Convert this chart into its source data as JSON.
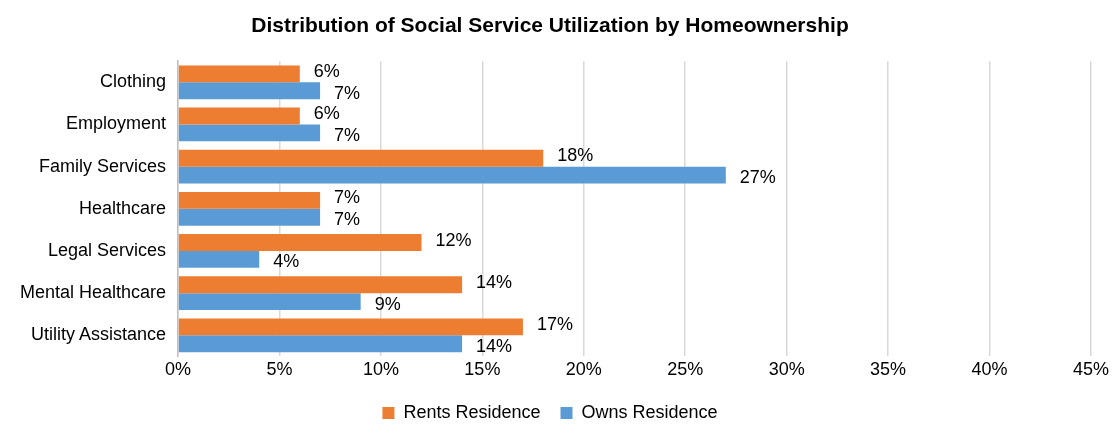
{
  "chart_data": {
    "type": "bar",
    "orientation": "horizontal",
    "title": "Distribution of Social Service Utilization by Homeownership",
    "categories": [
      "Clothing",
      "Employment",
      "Family Services",
      "Healthcare",
      "Legal Services",
      "Mental Healthcare",
      "Utility Assistance"
    ],
    "series": [
      {
        "name": "Rents Residence",
        "color": "#ed7d31",
        "values": [
          6,
          6,
          18,
          7,
          12,
          14,
          17
        ],
        "value_labels": [
          "6%",
          "6%",
          "18%",
          "7%",
          "12%",
          "14%",
          "17%"
        ]
      },
      {
        "name": "Owns Residence",
        "color": "#5b9bd5",
        "values": [
          7,
          7,
          27,
          7,
          4,
          9,
          14
        ],
        "value_labels": [
          "7%",
          "7%",
          "27%",
          "7%",
          "4%",
          "9%",
          "14%"
        ]
      }
    ],
    "xlim": [
      0,
      45
    ],
    "xticks": [
      {
        "value": 0,
        "label": "0%"
      },
      {
        "value": 5,
        "label": "5%"
      },
      {
        "value": 10,
        "label": "10%"
      },
      {
        "value": 15,
        "label": "15%"
      },
      {
        "value": 20,
        "label": "20%"
      },
      {
        "value": 25,
        "label": "25%"
      },
      {
        "value": 30,
        "label": "30%"
      },
      {
        "value": 35,
        "label": "35%"
      },
      {
        "value": 40,
        "label": "40%"
      },
      {
        "value": 45,
        "label": "45%"
      }
    ],
    "grid": "x",
    "legend": "bottom"
  }
}
